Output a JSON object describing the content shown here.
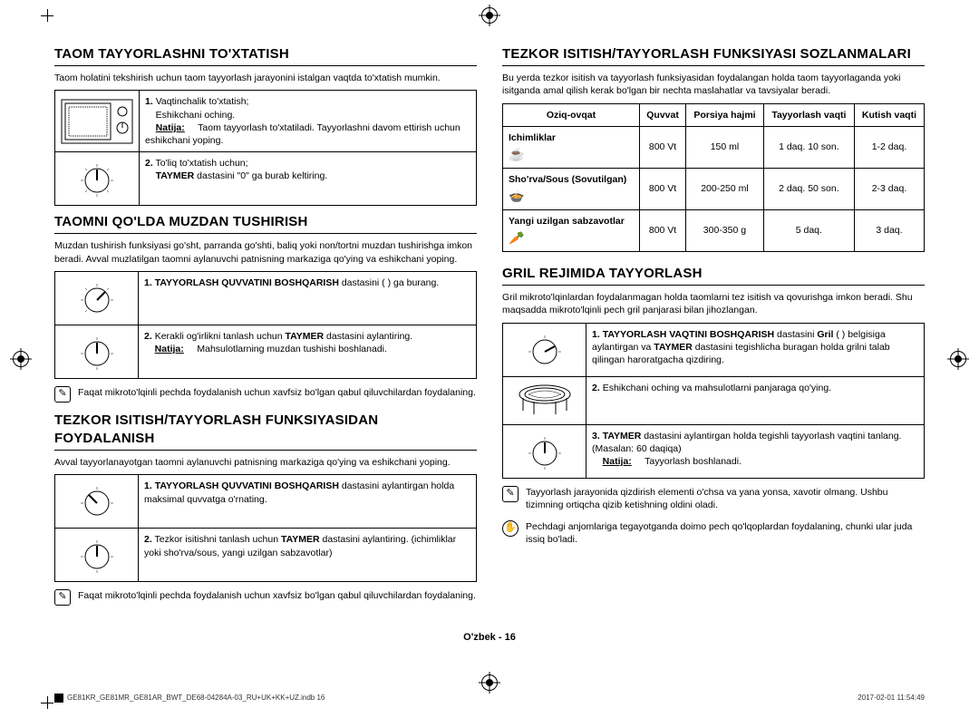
{
  "left": {
    "sec1": {
      "title": "TAOM TAYYORLASHNI TO'XTATISH",
      "intro": "Taom holatini tekshirish uchun taom tayyorlash jarayonini istalgan vaqtda to'xtatish mumkin.",
      "row1_num": "1.",
      "row1_line1": "Vaqtinchalik to'xtatish;",
      "row1_line2": "Eshikchani oching.",
      "row1_result_label": "Natija:",
      "row1_result_text": "Taom tayyorlash to'xtatiladi. Tayyorlashni davom ettirish uchun eshikchani yoping.",
      "row2_num": "2.",
      "row2_line1": "To'liq to'xtatish uchun;",
      "row2_line2_prefix": "TAYMER",
      "row2_line2_rest": " dastasini \"0\" ga burab keltiring."
    },
    "sec2": {
      "title": "TAOMNI QO'LDA MUZDAN TUSHIRISH",
      "intro": "Muzdan tushirish funksiyasi go'sht, parranda go'shti, baliq yoki non/tortni muzdan tushirishga imkon beradi. Avval muzlatilgan taomni aylanuvchi patnisning markaziga qo'ying va eshikchani yoping.",
      "row1_num": "1.",
      "row1_b": "TAYYORLASH QUVVATINI BOSHQARISH",
      "row1_rest": " dastasini (  ) ga burang.",
      "row2_num": "2.",
      "row2_a": "Kerakli og'irlikni tanlash uchun ",
      "row2_b": "TAYMER",
      "row2_c": " dastasini aylantiring.",
      "row2_result_label": "Natija:",
      "row2_result_text": "Mahsulotlarning muzdan tushishi boshlanadi.",
      "note": "Faqat mikroto'lqinli pechda foydalanish uchun xavfsiz bo'lgan qabul qiluvchilardan foydalaning."
    },
    "sec3": {
      "title": "TEZKOR ISITISH/TAYYORLASH FUNKSIYASIDAN FOYDALANISH",
      "intro": "Avval tayyorlanayotgan taomni aylanuvchi patnisning markaziga qo'ying va eshikchani yoping.",
      "row1_num": "1.",
      "row1_b": "TAYYORLASH QUVVATINI BOSHQARISH",
      "row1_rest": " dastasini aylantirgan holda maksimal quvvatga o'rnating.",
      "row2_num": "2.",
      "row2_a": "Tezkor isitishni tanlash uchun ",
      "row2_b": "TAYMER",
      "row2_c": " dastasini aylantiring. (ichimliklar yoki sho'rva/sous, yangi uzilgan sabzavotlar)",
      "note": "Faqat mikroto'lqinli pechda foydalanish uchun xavfsiz bo'lgan qabul qiluvchilardan foydalaning."
    }
  },
  "right": {
    "sec4": {
      "title": "TEZKOR ISITISH/TAYYORLASH FUNKSIYASI SOZLANMALARI",
      "intro": "Bu yerda tezkor isitish va tayyorlash funksiyasidan foydalangan holda taom tayyorlaganda yoki isitganda amal qilish kerak bo'lgan bir nechta maslahatlar va tavsiyalar beradi.",
      "headers": [
        "Oziq-ovqat",
        "Quvvat",
        "Porsiya hajmi",
        "Tayyorlash vaqti",
        "Kutish vaqti"
      ],
      "rows": [
        {
          "food": "Ichimliklar",
          "icon": "☕",
          "power": "800 Vt",
          "size": "150 ml",
          "cook": "1 daq. 10 son.",
          "wait": "1-2 daq."
        },
        {
          "food": "Sho'rva/Sous (Sovutilgan)",
          "icon": "🍲",
          "power": "800 Vt",
          "size": "200-250 ml",
          "cook": "2 daq. 50 son.",
          "wait": "2-3 daq."
        },
        {
          "food": "Yangi uzilgan sabzavotlar",
          "icon": "🥕",
          "power": "800 Vt",
          "size": "300-350 g",
          "cook": "5 daq.",
          "wait": "3 daq."
        }
      ]
    },
    "sec5": {
      "title": "GRIL REJIMIDA TAYYORLASH",
      "intro": "Gril mikroto'lqinlardan foydalanmagan holda taomlarni tez isitish va qovurishga imkon beradi. Shu maqsadda mikroto'lqinli pech gril panjarasi bilan jihozlangan.",
      "row1_num": "1.",
      "row1_b": "TAYYORLASH VAQTINI BOSHQARISH",
      "row1_mid": " dastasini ",
      "row1_b2": "Gril",
      "row1_rest": " (  ) belgisiga aylantirgan va ",
      "row1_b3": "TAYMER",
      "row1_rest2": " dastasini tegishlicha buragan holda grilni talab qilingan haroratgacha qizdiring.",
      "row2_num": "2.",
      "row2_text": "Eshikchani oching va mahsulotlarni panjaraga qo'ying.",
      "row3_num": "3.",
      "row3_b": "TAYMER",
      "row3_rest": " dastasini aylantirgan holda tegishli tayyorlash vaqtini tanlang. (Masalan: 60 daqiqa)",
      "row3_result_label": "Natija:",
      "row3_result_text": "Tayyorlash boshlanadi.",
      "note1": "Tayyorlash jarayonida qizdirish elementi o'chsa va yana yonsa, xavotir olmang. Ushbu tizimning ortiqcha qizib ketishning oldini oladi.",
      "note2": "Pechdagi anjomlariga tegayotganda doimo pech qo'lqoplardan foydalaning, chunki ular juda issiq bo'ladi."
    }
  },
  "page_num": "O'zbek - 16",
  "footer_left": "GE81KR_GE81MR_GE81AR_BWT_DE68-04284A-03_RU+UK+KK+UZ.indb   16",
  "footer_right": "2017-02-01    11:54:49"
}
